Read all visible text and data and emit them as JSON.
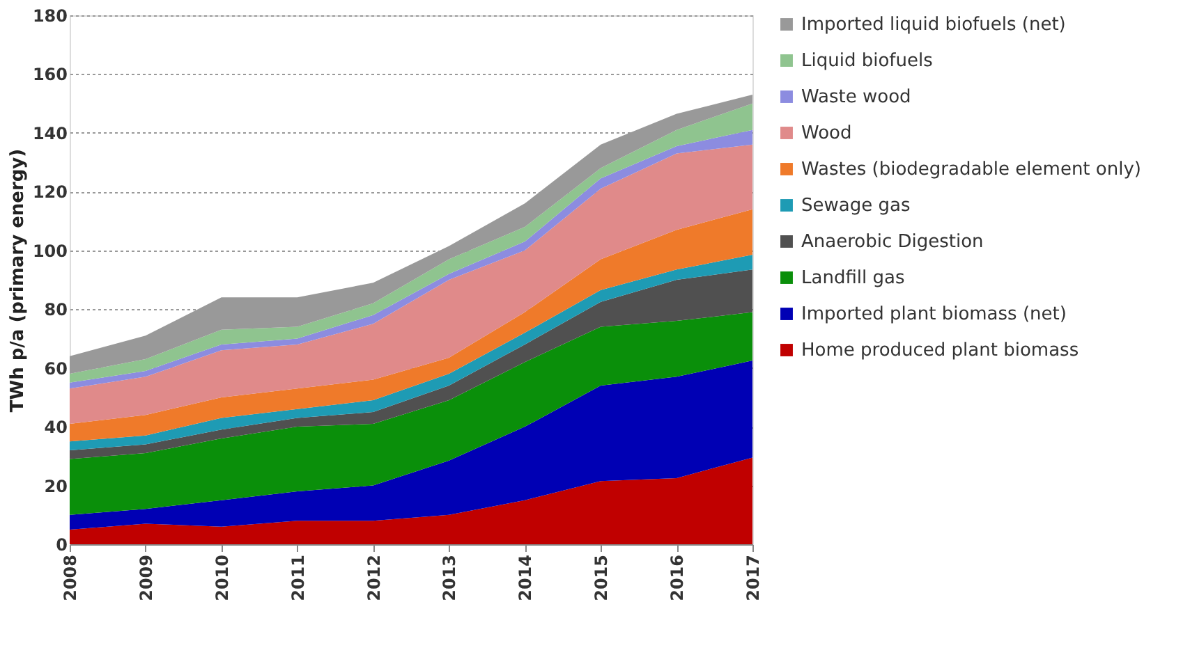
{
  "chart_data": {
    "type": "area",
    "stacked": true,
    "ylabel": "TWh p/a (primary energy)",
    "x": [
      2008,
      2009,
      2010,
      2011,
      2012,
      2013,
      2014,
      2015,
      2016,
      2017
    ],
    "xlim": [
      2008,
      2017
    ],
    "xticks": [
      2008,
      2009,
      2010,
      2011,
      2012,
      2013,
      2014,
      2015,
      2016,
      2017
    ],
    "ylim": [
      0,
      180
    ],
    "yticks": [
      0,
      20,
      40,
      60,
      80,
      100,
      120,
      140,
      160,
      180
    ],
    "grid": "y",
    "legend": "right",
    "series": [
      {
        "name": "Home produced plant biomass",
        "color": "#c00000",
        "values": [
          5,
          7,
          6,
          8,
          8,
          10,
          15,
          21.5,
          22.5,
          29.5
        ]
      },
      {
        "name": "Imported plant biomass (net)",
        "color": "#0000b4",
        "values": [
          5,
          5,
          9,
          10,
          12,
          18.5,
          25,
          32.5,
          34.5,
          33
        ]
      },
      {
        "name": "Landfill gas",
        "color": "#0a8f0a",
        "values": [
          19,
          19,
          21,
          22,
          21,
          20.5,
          22,
          20,
          19,
          16.5
        ]
      },
      {
        "name": "Anaerobic Digestion",
        "color": "#505050",
        "values": [
          3,
          3,
          3,
          3,
          4,
          5,
          6,
          8.5,
          14,
          14.5
        ]
      },
      {
        "name": "Sewage gas",
        "color": "#1e9bb4",
        "values": [
          3,
          3,
          4,
          3,
          4,
          4,
          4,
          4,
          3.5,
          5
        ]
      },
      {
        "name": "Wastes (biodegradable element only)",
        "color": "#ef7a2a",
        "values": [
          6,
          7,
          7,
          7,
          7,
          5.5,
          7,
          10.5,
          13.5,
          15.5
        ]
      },
      {
        "name": "Wood",
        "color": "#e08a8a",
        "values": [
          12,
          13,
          16,
          15,
          19,
          26.5,
          21,
          24,
          26,
          22
        ]
      },
      {
        "name": "Waste wood",
        "color": "#8c8ce0",
        "values": [
          2,
          2,
          2,
          2,
          3,
          2,
          3,
          3.5,
          2.5,
          5
        ]
      },
      {
        "name": "Liquid biofuels",
        "color": "#8fc48f",
        "values": [
          3,
          4,
          5,
          4,
          4,
          5,
          5,
          3.5,
          5.5,
          9
        ]
      },
      {
        "name": "Imported liquid biofuels (net)",
        "color": "#999999",
        "values": [
          6,
          8,
          11,
          10,
          7,
          4.5,
          8,
          8,
          5.5,
          3
        ]
      }
    ]
  }
}
